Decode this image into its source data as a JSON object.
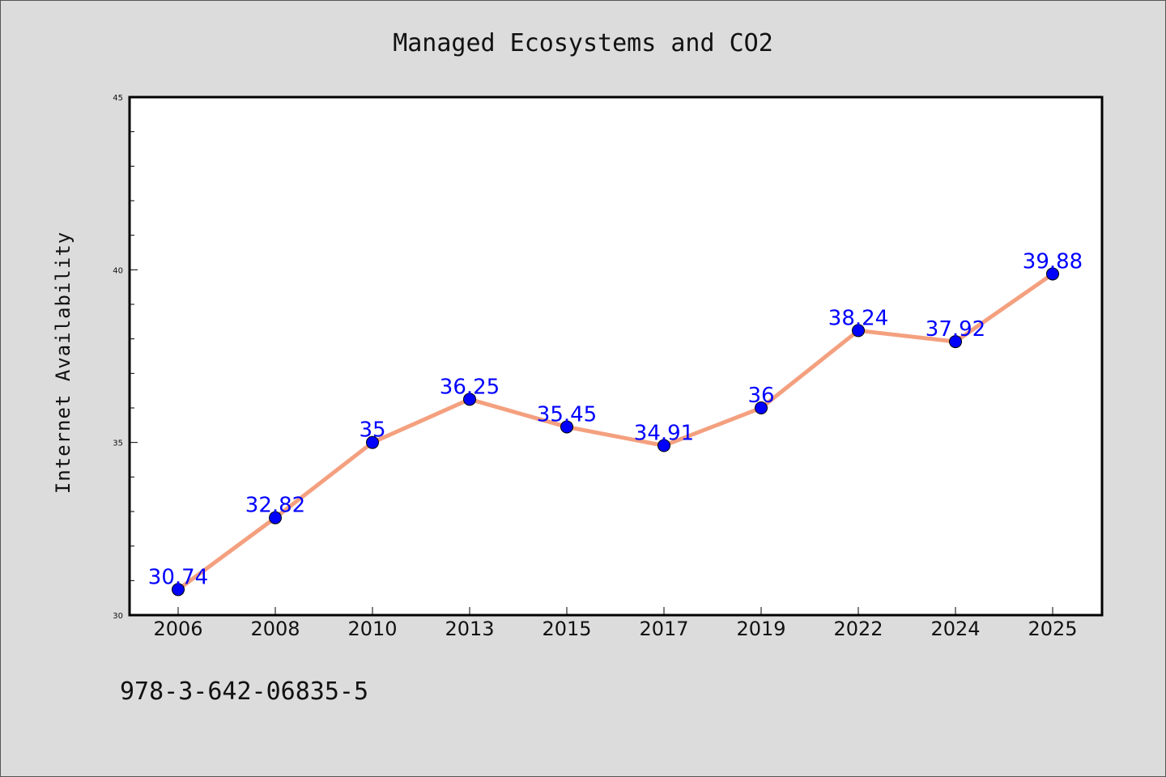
{
  "chart_data": {
    "type": "line",
    "title": "Managed Ecosystems and CO2",
    "xlabel": "",
    "ylabel": "Internet Availability",
    "categories": [
      "2006",
      "2008",
      "2010",
      "2013",
      "2015",
      "2017",
      "2019",
      "2022",
      "2024",
      "2025"
    ],
    "series": [
      {
        "values": [
          30.74,
          32.82,
          35,
          36.25,
          35.45,
          34.91,
          36,
          38.24,
          37.92,
          39.88
        ],
        "data_labels": [
          "30.74",
          "32.82",
          "35",
          "36.25",
          "35.45",
          "34.91",
          "36",
          "38.24",
          "37.92",
          "39.88"
        ]
      }
    ],
    "ylim": [
      30,
      45
    ],
    "yticks": [
      "30",
      "35",
      "40",
      "45"
    ],
    "grid": false,
    "legend": "none",
    "colors": {
      "line": "#f4a07f",
      "marker": "#0000ff",
      "data_label": "#0000ff",
      "plot_background": "#ffffff",
      "figure_background": "#dcdcdc"
    }
  },
  "footer": {
    "isbn": "978-3-642-06835-5"
  }
}
